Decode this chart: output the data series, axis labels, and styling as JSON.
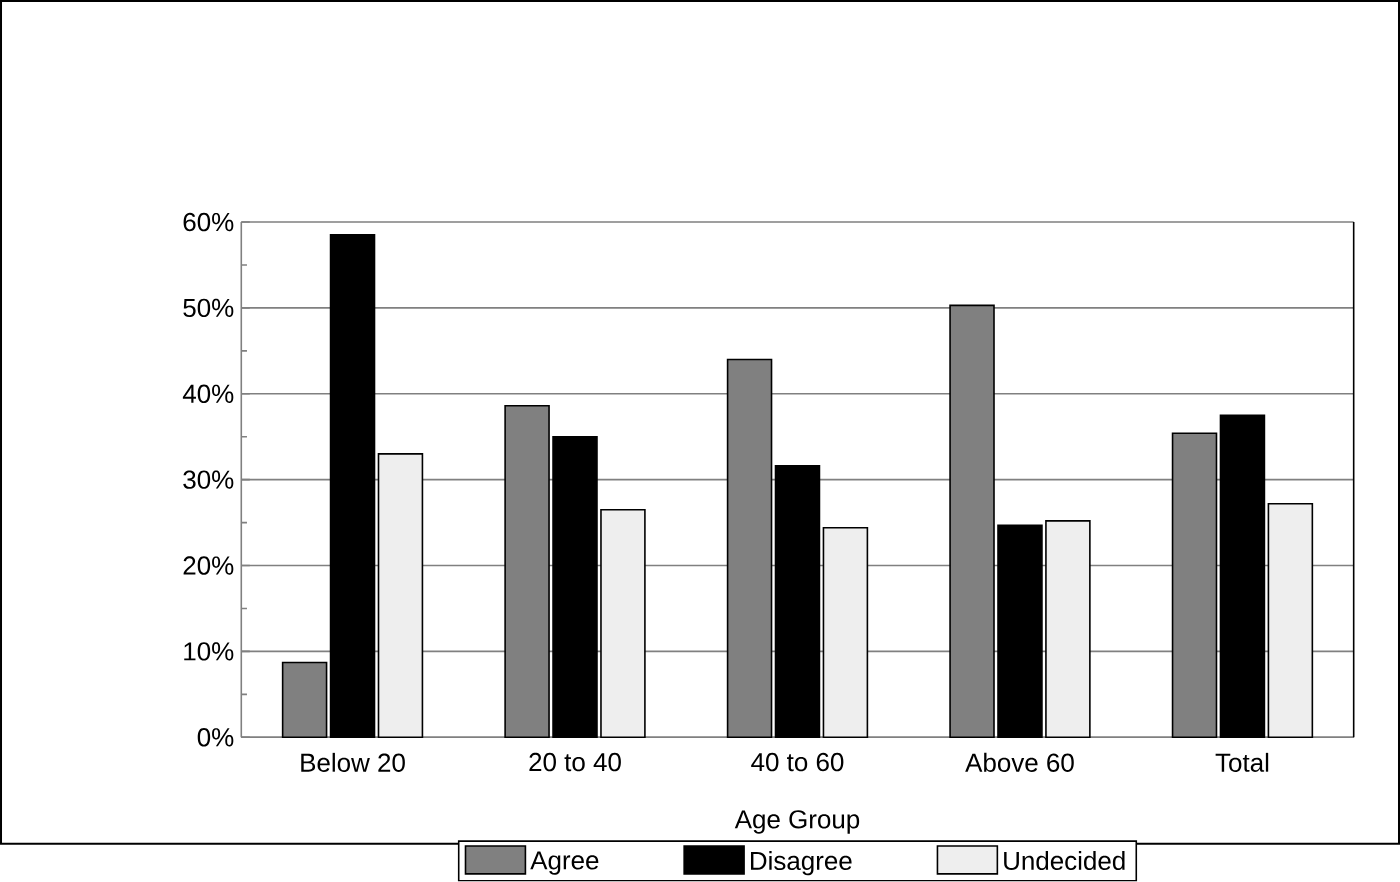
{
  "chart_data": {
    "type": "bar",
    "xlabel": "Age Group",
    "categories": [
      "Below 20",
      "20 to 40",
      "40 to 60",
      "Above 60",
      "Total"
    ],
    "series": [
      {
        "name": "Agree",
        "color": "#808080",
        "values": [
          8.7,
          38.6,
          44.0,
          50.3,
          35.4
        ]
      },
      {
        "name": "Disagree",
        "color": "#000000",
        "values": [
          58.5,
          35.0,
          31.6,
          24.7,
          37.5
        ]
      },
      {
        "name": "Undecided",
        "color": "#eeeeee",
        "values": [
          33.0,
          26.5,
          24.4,
          25.2,
          27.2
        ]
      }
    ],
    "ylim": [
      0,
      60
    ],
    "yticks": [
      {
        "value": 0,
        "label": "0%"
      },
      {
        "value": 10,
        "label": "10%"
      },
      {
        "value": 20,
        "label": "20%"
      },
      {
        "value": 30,
        "label": "30%"
      },
      {
        "value": 40,
        "label": "40%"
      },
      {
        "value": 50,
        "label": "50%"
      },
      {
        "value": 60,
        "label": "60%"
      }
    ],
    "grid": "y",
    "legend": "bottom"
  }
}
